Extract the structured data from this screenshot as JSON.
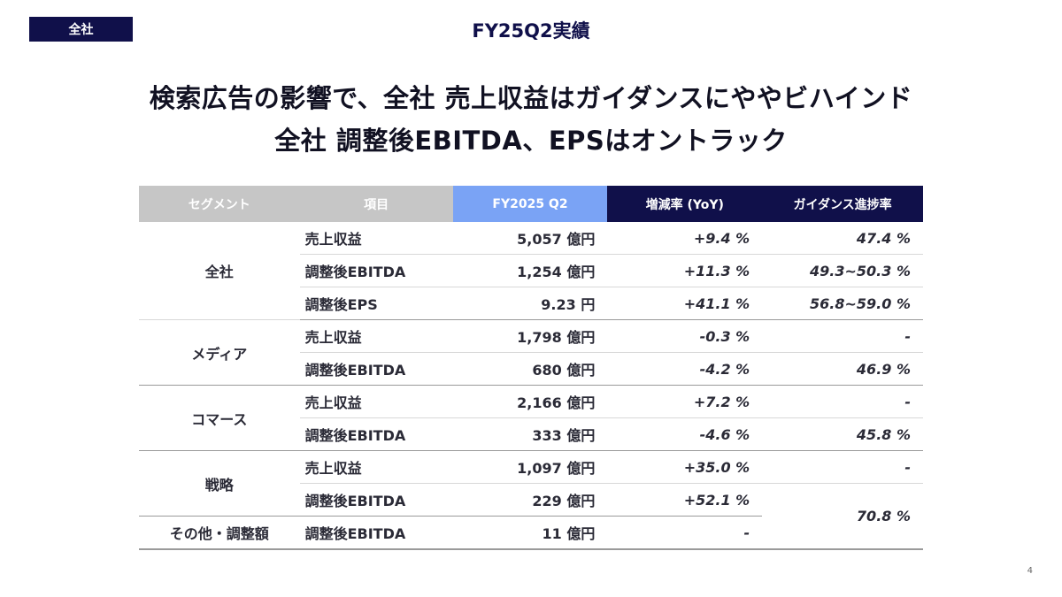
{
  "header": {
    "tag": "全社",
    "title": "FY25Q2実績"
  },
  "headline": {
    "line1": "検索広告の影響で、全社 売上収益はガイダンスにややビハインド",
    "line2": "全社 調整後EBITDA、EPSはオントラック"
  },
  "table": {
    "columns": [
      "セグメント",
      "項目",
      "FY2025 Q2",
      "増減率 (YoY)",
      "ガイダンス進捗率"
    ],
    "rows": [
      {
        "segment": "全社",
        "item": "売上収益",
        "value": "5,057 億円",
        "yoy": "+9.4 %",
        "guidance": "47.4 %"
      },
      {
        "item": "調整後EBITDA",
        "value": "1,254 億円",
        "yoy": "+11.3 %",
        "guidance": "49.3~50.3 %"
      },
      {
        "item": "調整後EPS",
        "value": "9.23 円",
        "yoy": "+41.1 %",
        "guidance": "56.8~59.0 %"
      },
      {
        "segment": "メディア",
        "item": "売上収益",
        "value": "1,798 億円",
        "yoy": "-0.3 %",
        "guidance": "-"
      },
      {
        "item": "調整後EBITDA",
        "value": "680 億円",
        "yoy": "-4.2 %",
        "guidance": "46.9 %"
      },
      {
        "segment": "コマース",
        "item": "売上収益",
        "value": "2,166 億円",
        "yoy": "+7.2 %",
        "guidance": "-"
      },
      {
        "item": "調整後EBITDA",
        "value": "333 億円",
        "yoy": "-4.6 %",
        "guidance": "45.8 %"
      },
      {
        "segment": "戦略",
        "item": "売上収益",
        "value": "1,097 億円",
        "yoy": "+35.0 %",
        "guidance": "-"
      },
      {
        "item": "調整後EBITDA",
        "value": "229 億円",
        "yoy": "+52.1 %",
        "guidance": "70.8 %"
      },
      {
        "segment": "その他・調整額",
        "item": "調整後EBITDA",
        "value": "11 億円",
        "yoy": "-"
      }
    ]
  },
  "page_number": "4"
}
